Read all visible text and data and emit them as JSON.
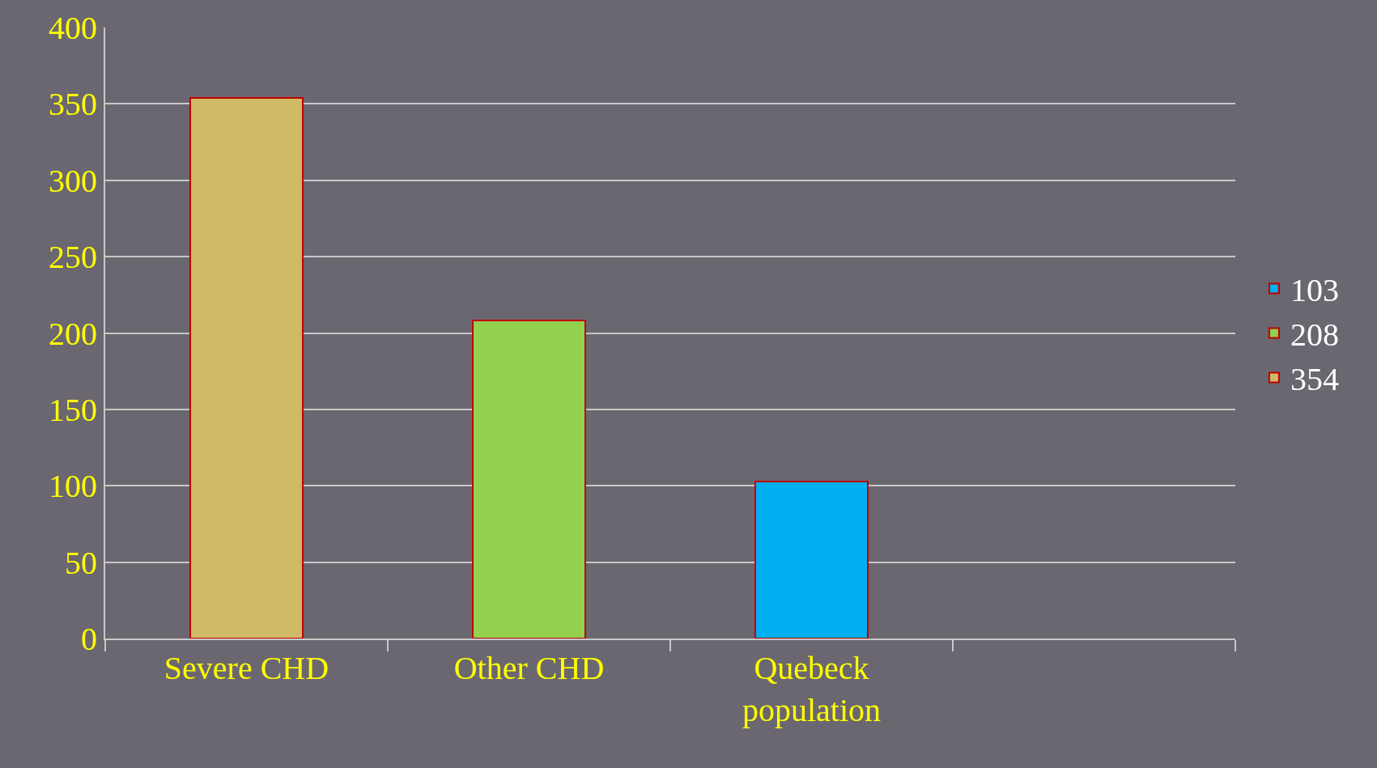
{
  "chart_data": {
    "type": "bar",
    "stacked": true,
    "categories": [
      "Severe CHD",
      "Other CHD",
      "Quebeck population",
      null
    ],
    "series": [
      {
        "name": "354",
        "color": "#cfba66",
        "values": [
          354,
          null,
          null,
          null
        ]
      },
      {
        "name": "208",
        "color": "#92d050",
        "values": [
          null,
          208,
          null,
          null
        ]
      },
      {
        "name": "103",
        "color": "#00b0f0",
        "values": [
          null,
          null,
          103,
          null
        ]
      }
    ],
    "ylim": [
      0,
      400
    ],
    "yticks": [
      0,
      50,
      100,
      150,
      200,
      250,
      300,
      350,
      400
    ],
    "grid": "y",
    "legend": "right"
  }
}
